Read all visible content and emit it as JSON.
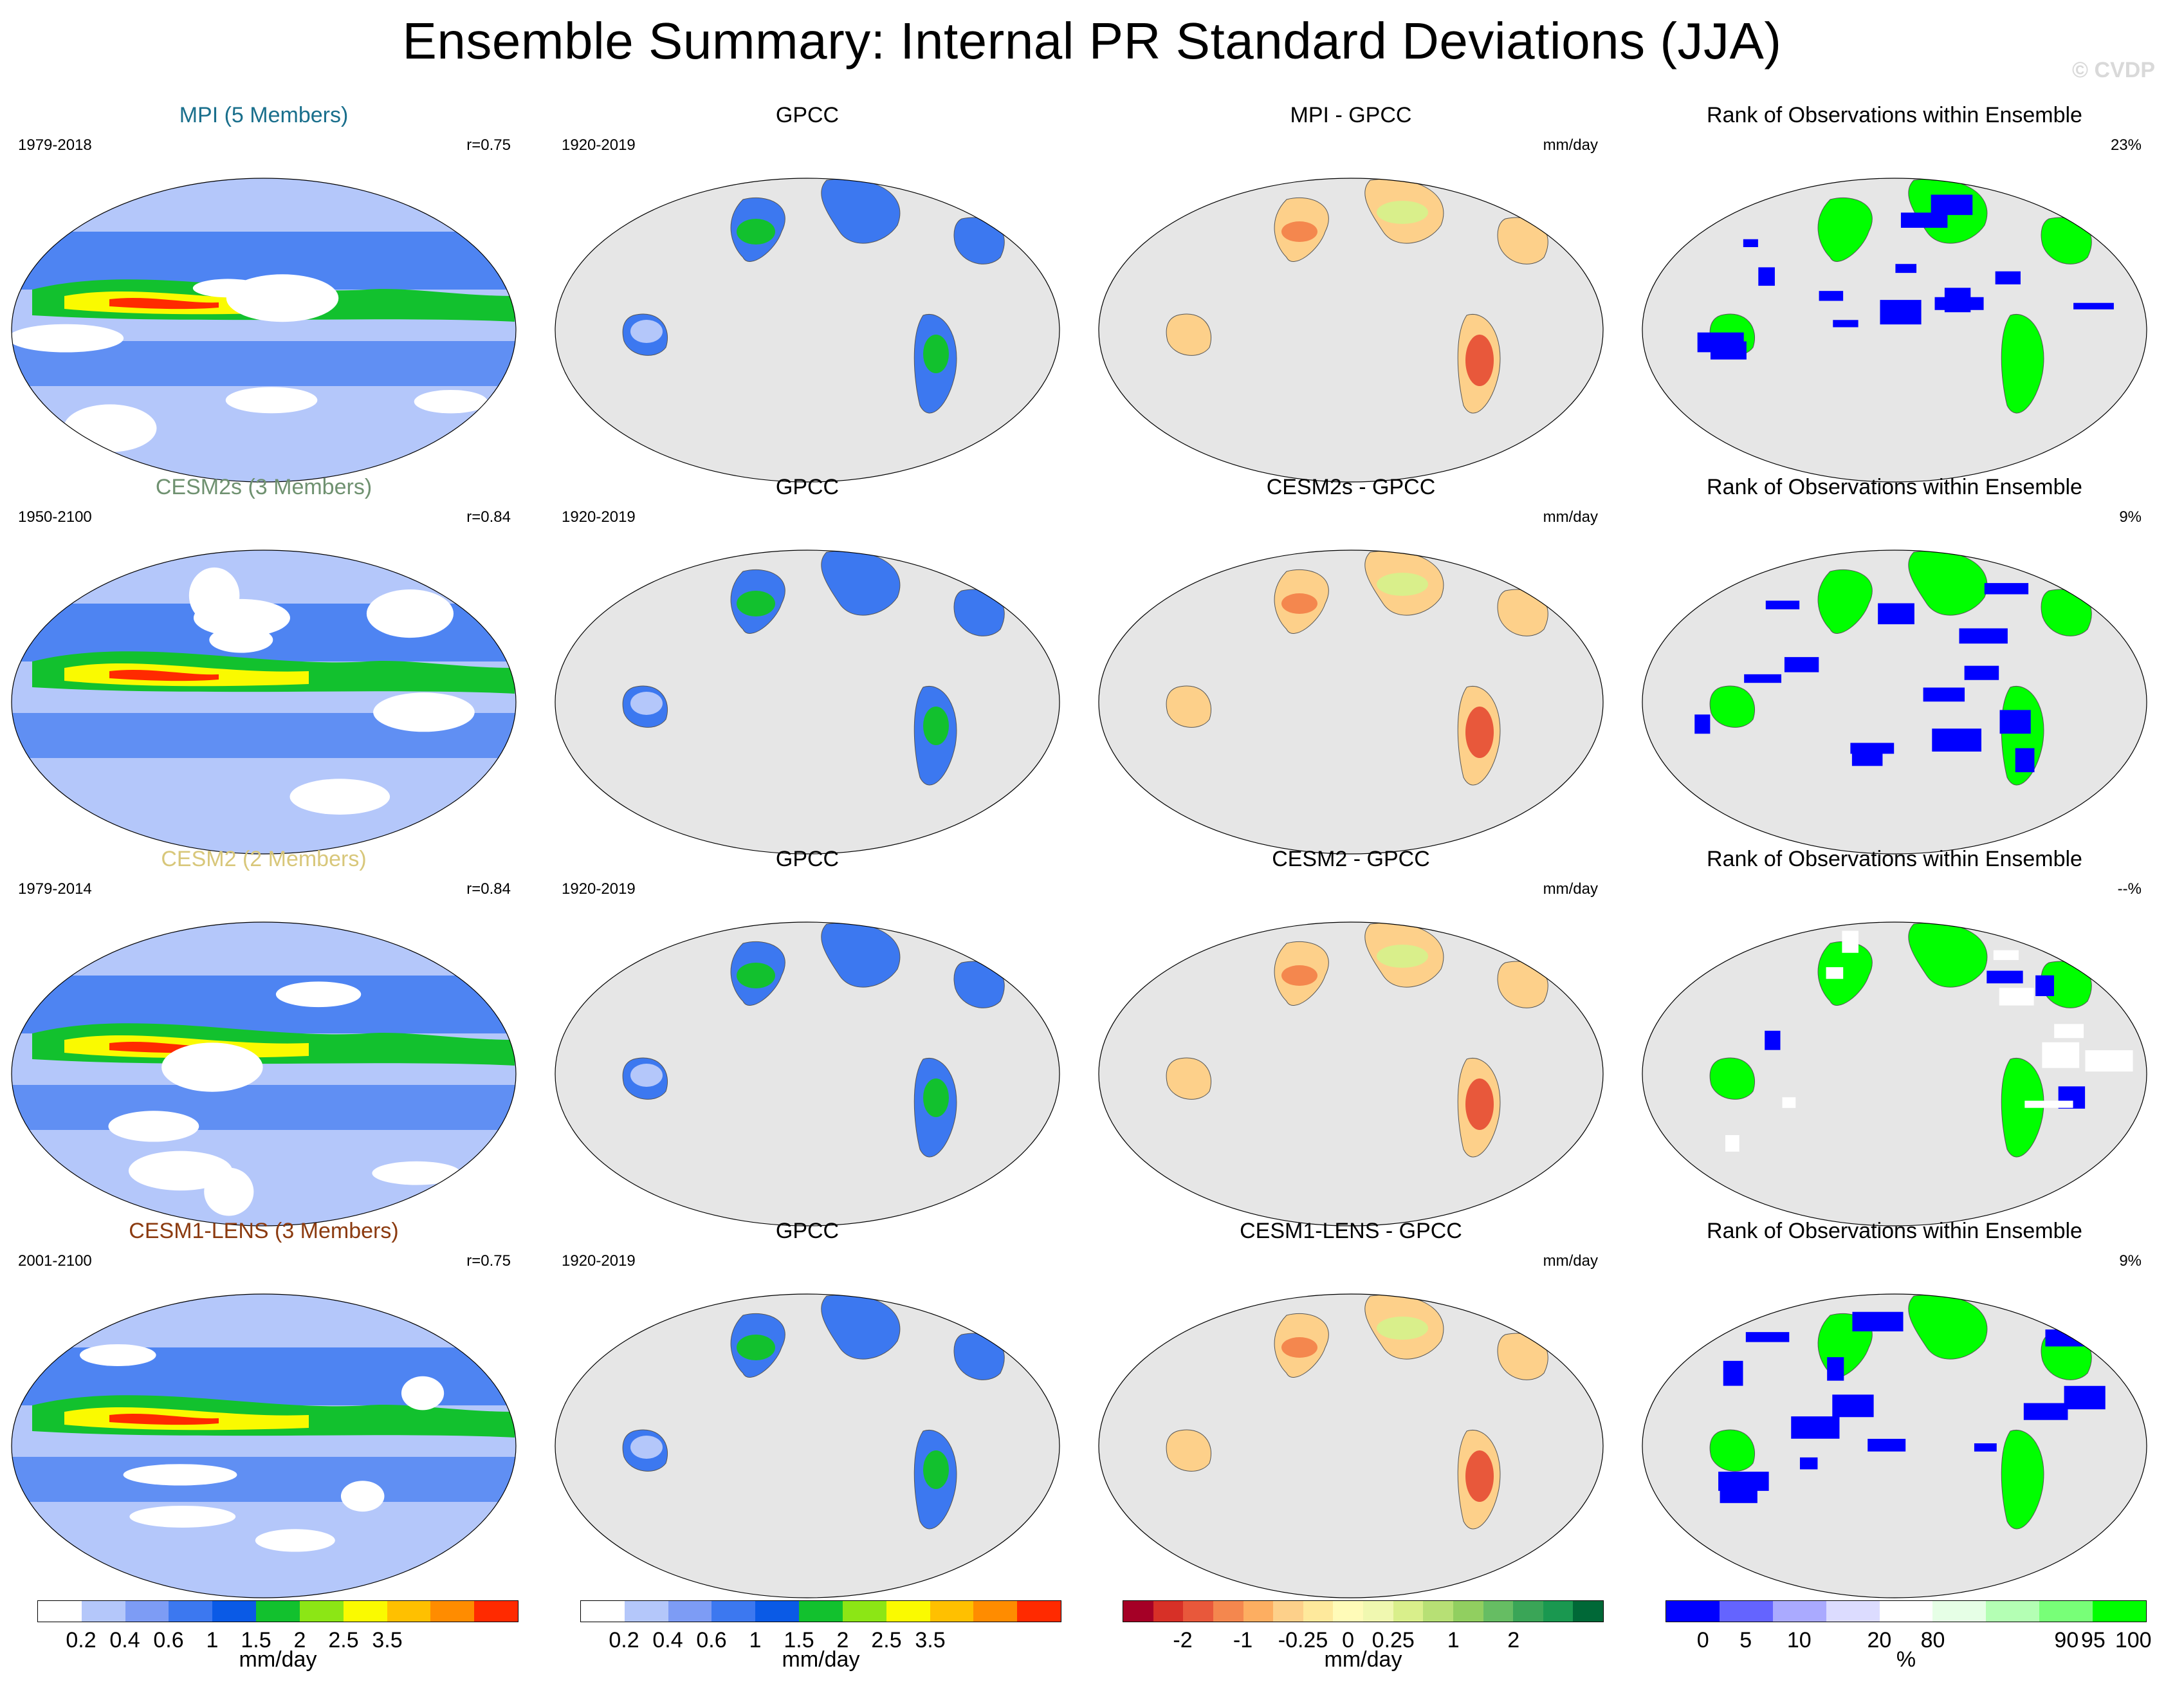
{
  "title": "Ensemble Summary: Internal PR Standard Deviations (JJA)",
  "watermark": "© CVDP",
  "rows": [
    {
      "model": {
        "title": "MPI (5 Members)",
        "title_color": "#1a6f8c",
        "left": "1979-2018",
        "right": "r=0.75"
      },
      "obs": {
        "title": "GPCC",
        "left": "1920-2019"
      },
      "diff": {
        "title": "MPI - GPCC",
        "right": "mm/day"
      },
      "rank": {
        "title": "Rank of Observations within Ensemble",
        "right": "23%"
      }
    },
    {
      "model": {
        "title": "CESM2s (3 Members)",
        "title_color": "#6f9170",
        "left": "1950-2100",
        "right": "r=0.84"
      },
      "obs": {
        "title": "GPCC",
        "left": "1920-2019"
      },
      "diff": {
        "title": "CESM2s - GPCC",
        "right": "mm/day"
      },
      "rank": {
        "title": "Rank of Observations within Ensemble",
        "right": "9%"
      }
    },
    {
      "model": {
        "title": "CESM2 (2 Members)",
        "title_color": "#d8c77a",
        "left": "1979-2014",
        "right": "r=0.84"
      },
      "obs": {
        "title": "GPCC",
        "left": "1920-2019"
      },
      "diff": {
        "title": "CESM2 - GPCC",
        "right": "mm/day"
      },
      "rank": {
        "title": "Rank of Observations within Ensemble",
        "right": "--%"
      }
    },
    {
      "model": {
        "title": "CESM1-LENS (3 Members)",
        "title_color": "#8b3a0f",
        "left": "2001-2100",
        "right": "r=0.75"
      },
      "obs": {
        "title": "GPCC",
        "left": "1920-2019"
      },
      "diff": {
        "title": "CESM1-LENS - GPCC",
        "right": "mm/day"
      },
      "rank": {
        "title": "Rank of Observations within Ensemble",
        "right": "9%"
      }
    }
  ],
  "colorbars": [
    {
      "id": "model",
      "colors": [
        "#ffffff",
        "#b4c7fa",
        "#7d9cf5",
        "#3c78f0",
        "#0a5ae6",
        "#12c12e",
        "#8ce615",
        "#fafa00",
        "#ffc000",
        "#ff8c00",
        "#ff2a00"
      ],
      "ticks": [
        "0.2",
        "0.4",
        "0.6",
        "1",
        "1.5",
        "2",
        "2.5",
        "3.5"
      ],
      "units": "mm/day"
    },
    {
      "id": "obs",
      "colors": [
        "#ffffff",
        "#b4c7fa",
        "#7d9cf5",
        "#3c78f0",
        "#0a5ae6",
        "#12c12e",
        "#8ce615",
        "#fafa00",
        "#ffc000",
        "#ff8c00",
        "#ff2a00"
      ],
      "ticks": [
        "0.2",
        "0.4",
        "0.6",
        "1",
        "1.5",
        "2",
        "2.5",
        "3.5"
      ],
      "units": "mm/day"
    },
    {
      "id": "diff",
      "colors": [
        "#a50026",
        "#d73027",
        "#e8583b",
        "#f4874e",
        "#fdae61",
        "#fdd08a",
        "#fee99c",
        "#fffbb8",
        "#f0f8b0",
        "#d9ef8b",
        "#b7e075",
        "#91cf60",
        "#66bd63",
        "#3aa557",
        "#1a9850",
        "#006837"
      ],
      "ticks": [
        "-2",
        "-1",
        "-0.25",
        "0",
        "0.25",
        "1",
        "2"
      ],
      "units": "mm/day"
    },
    {
      "id": "rank",
      "colors": [
        "#0000ff",
        "#6464ff",
        "#aaaaff",
        "#dcdcff",
        "#ffffff",
        "#e6ffe6",
        "#b4ffb4",
        "#78ff78",
        "#00ff00"
      ],
      "ticks": [
        "0",
        "5",
        "10",
        "20",
        "80",
        "90",
        "95",
        "100"
      ],
      "units": "%"
    }
  ]
}
